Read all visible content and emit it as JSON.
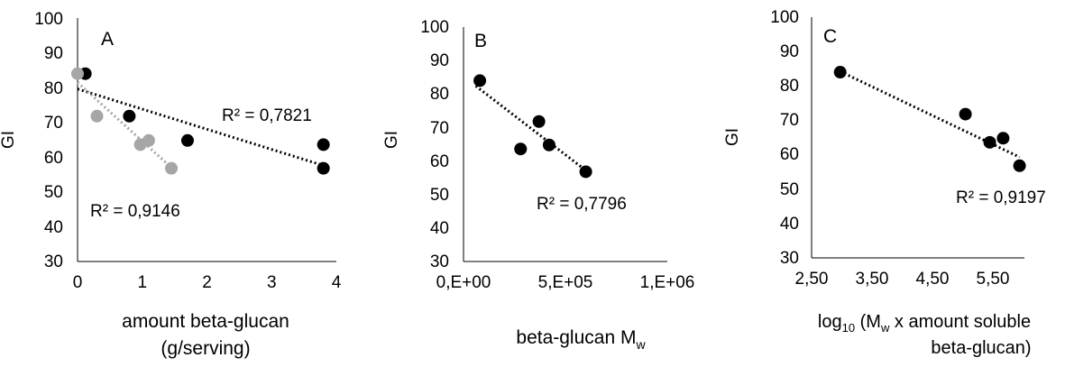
{
  "chart_data": [
    {
      "type": "scatter",
      "panel_label": "A",
      "xlabel": [
        "amount beta-glucan",
        "(g/serving)"
      ],
      "ylabel": "GI",
      "xlim": [
        0,
        4
      ],
      "ylim": [
        30,
        100
      ],
      "xticks": [
        "0",
        "1",
        "2",
        "3",
        "4"
      ],
      "yticks": [
        "30",
        "40",
        "50",
        "60",
        "70",
        "80",
        "90",
        "100"
      ],
      "series": [
        {
          "color": "#000000",
          "points": [
            [
              0.12,
              84
            ],
            [
              0.8,
              71.8
            ],
            [
              1.7,
              64.8
            ],
            [
              3.8,
              63.6
            ],
            [
              3.8,
              56.8
            ]
          ],
          "trend": [
            [
              0.0,
              79.6
            ],
            [
              3.8,
              57.6
            ]
          ],
          "r2_label": "R² = 0,7821"
        },
        {
          "color": "#a6a6a6",
          "points": [
            [
              0.0,
              84
            ],
            [
              0.3,
              71.8
            ],
            [
              0.97,
              63.6
            ],
            [
              1.1,
              64.8
            ],
            [
              1.45,
              56.8
            ]
          ],
          "trend": [
            [
              0.0,
              81.5
            ],
            [
              1.45,
              57.0
            ]
          ],
          "r2_label": "R² = 0,9146"
        }
      ]
    },
    {
      "type": "scatter",
      "panel_label": "B",
      "xlabel": [
        "beta-glucan M",
        "w"
      ],
      "ylabel": "GI",
      "xlim": [
        0,
        1000000
      ],
      "ylim": [
        30,
        100
      ],
      "xticks": [
        "0,E+00",
        "5,E+05",
        "1,E+06"
      ],
      "yticks": [
        "30",
        "40",
        "50",
        "60",
        "70",
        "80",
        "90",
        "100"
      ],
      "series": [
        {
          "color": "#000000",
          "points": [
            [
              80000,
              84
            ],
            [
              280000,
              63.6
            ],
            [
              370000,
              71.8
            ],
            [
              420000,
              64.8
            ],
            [
              600000,
              56.8
            ]
          ],
          "trend": [
            [
              60000,
              82.4
            ],
            [
              600000,
              57.2
            ]
          ],
          "r2_label": "R² = 0,7796"
        }
      ]
    },
    {
      "type": "scatter",
      "panel_label": "C",
      "xlabel": [
        "log",
        "10",
        " (M",
        "w",
        " x  amount soluble",
        "beta-glucan)"
      ],
      "ylabel": "GI",
      "xlim": [
        2.5,
        6.0
      ],
      "ylim": [
        30,
        100
      ],
      "xticks": [
        "2,50",
        "3,50",
        "4,50",
        "5,50"
      ],
      "yticks": [
        "30",
        "40",
        "50",
        "60",
        "70",
        "80",
        "90",
        "100"
      ],
      "series": [
        {
          "color": "#000000",
          "points": [
            [
              2.97,
              84
            ],
            [
              5.03,
              71.8
            ],
            [
              5.43,
              63.6
            ],
            [
              5.65,
              64.8
            ],
            [
              5.92,
              56.8
            ]
          ],
          "trend": [
            [
              2.97,
              84.2
            ],
            [
              5.92,
              59.3
            ]
          ],
          "r2_label": "R² = 0,9197"
        }
      ]
    }
  ]
}
